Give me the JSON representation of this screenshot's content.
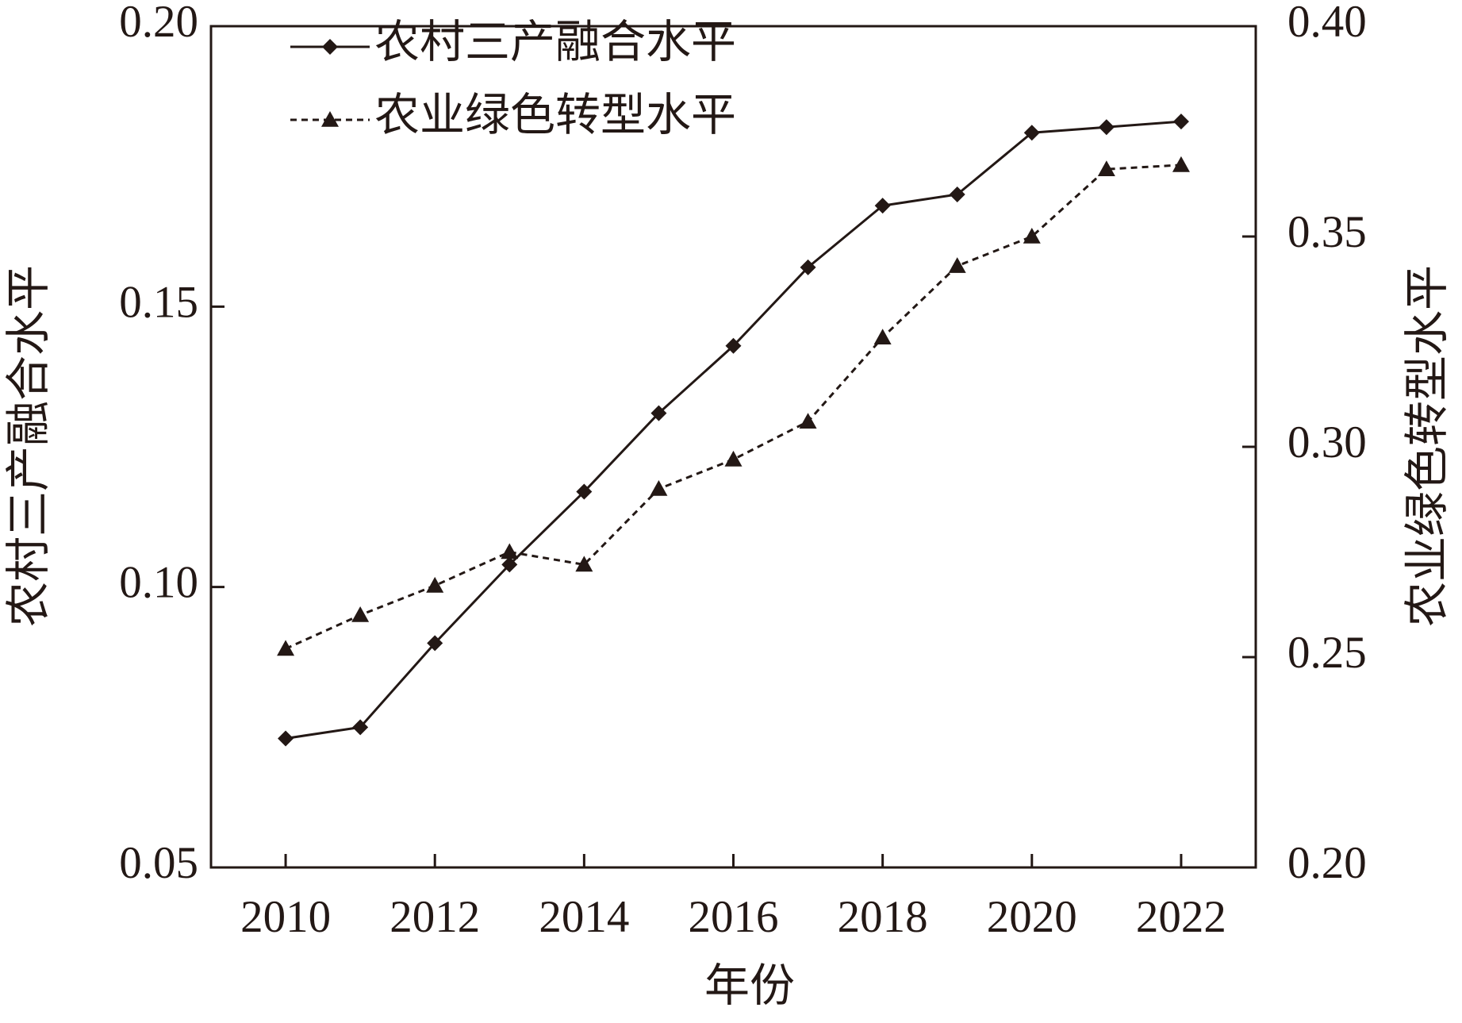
{
  "chart_data": {
    "type": "line",
    "x_label": "年份",
    "y_label": "农村三产融合水平",
    "y2_label": "农业绿色转型水平",
    "x": [
      2010,
      2011,
      2012,
      2013,
      2014,
      2015,
      2016,
      2017,
      2018,
      2019,
      2020,
      2021,
      2022
    ],
    "xlim": [
      2009,
      2023
    ],
    "xticks": [
      2010,
      2012,
      2014,
      2016,
      2018,
      2020,
      2022
    ],
    "ylim": [
      0.05,
      0.2
    ],
    "yticks": [
      0.05,
      {
        "value": 0.1,
        "label": "0.10"
      },
      0.15,
      {
        "value": 0.2,
        "label": "0.20"
      }
    ],
    "y2lim": [
      0.2,
      0.4
    ],
    "y2ticks": [
      {
        "value": 0.2,
        "label": "0.20"
      },
      0.25,
      {
        "value": 0.3,
        "label": "0.30"
      },
      0.35,
      {
        "value": 0.4,
        "label": "0.40"
      }
    ],
    "grid": false,
    "legend": "upper left",
    "series": [
      {
        "name": "农村三产融合水平",
        "color": "#231815",
        "marker": "diamond",
        "dash": "solid",
        "values": [
          0.073,
          0.075,
          0.09,
          0.104,
          0.117,
          0.131,
          0.143,
          0.157,
          0.168,
          0.17,
          0.181,
          0.182,
          0.183
        ]
      },
      {
        "name": "农业绿色转型水平",
        "color": "#231815",
        "marker": "triangle",
        "dash": "dashed",
        "axis": "y2",
        "values": [
          0.252,
          0.26,
          0.267,
          0.275,
          0.272,
          0.29,
          0.297,
          0.306,
          0.326,
          0.343,
          0.35,
          0.366,
          0.367
        ]
      }
    ]
  }
}
